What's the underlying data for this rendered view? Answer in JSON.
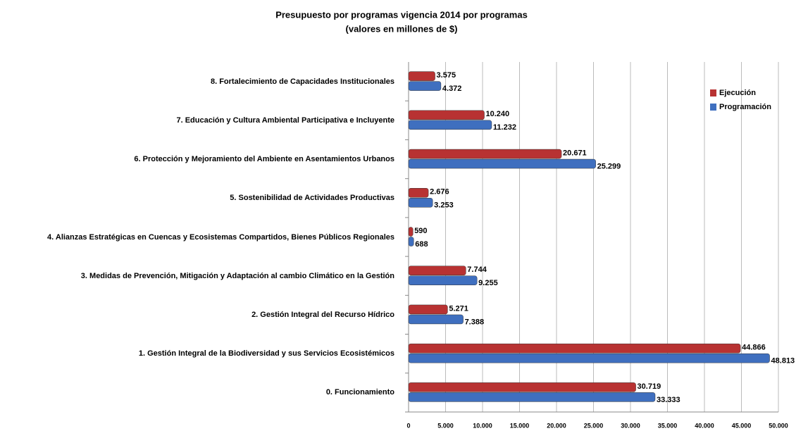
{
  "chart_data": {
    "type": "bar",
    "orientation": "horizontal",
    "title": "Presupuesto por programas vigencia 2014 por programas",
    "subtitle": "(valores en millones de $)",
    "categories": [
      "0. Funcionamiento",
      "1. Gestión Integral de la Biodiversidad y sus Servicios Ecosistémicos",
      "2. Gestión Integral del Recurso Hídrico",
      "3. Medidas de Prevención, Mitigación y Adaptación al cambio Climático en la Gestión",
      "4. Alianzas Estratégicas en Cuencas y Ecosistemas Compartidos, Bienes Públicos Regionales",
      "5.  Sostenibilidad de Actividades Productivas",
      "6. Protección y Mejoramiento del Ambiente en Asentamientos Urbanos",
      "7. Educación y Cultura Ambiental Participativa e Incluyente",
      "8. Fortalecimiento de Capacidades Institucionales"
    ],
    "series": [
      {
        "name": "Ejecución",
        "color": "#b83232",
        "values": [
          30719,
          44866,
          5271,
          7744,
          590,
          2676,
          20671,
          10240,
          3575
        ],
        "value_labels": [
          "30.719",
          "44.866",
          "5.271",
          "7.744",
          "590",
          "2.676",
          "20.671",
          "10.240",
          "3.575"
        ]
      },
      {
        "name": "Programación",
        "color": "#3f6fbf",
        "values": [
          33333,
          48813,
          7388,
          9255,
          688,
          3253,
          25299,
          11232,
          4372
        ],
        "value_labels": [
          "33.333",
          "48.813",
          "7.388",
          "9.255",
          "688",
          "3.253",
          "25.299",
          "11.232",
          "4.372"
        ]
      }
    ],
    "xlim": [
      0,
      50000
    ],
    "xticks": [
      0,
      {
        "value": 5000,
        "label": "5.000"
      },
      {
        "value": 10000,
        "label": "10.000"
      },
      {
        "value": 15000,
        "label": "15.000"
      },
      {
        "value": 20000,
        "label": "20.000"
      },
      {
        "value": 25000,
        "label": "25.000"
      },
      {
        "value": 30000,
        "label": "30.000"
      },
      {
        "value": 35000,
        "label": "35.000"
      },
      {
        "value": 40000,
        "label": "40.000"
      },
      {
        "value": 45000,
        "label": "45.000"
      },
      {
        "value": 50000,
        "label": "50.000"
      }
    ],
    "grid": true,
    "legend": "top-right"
  }
}
